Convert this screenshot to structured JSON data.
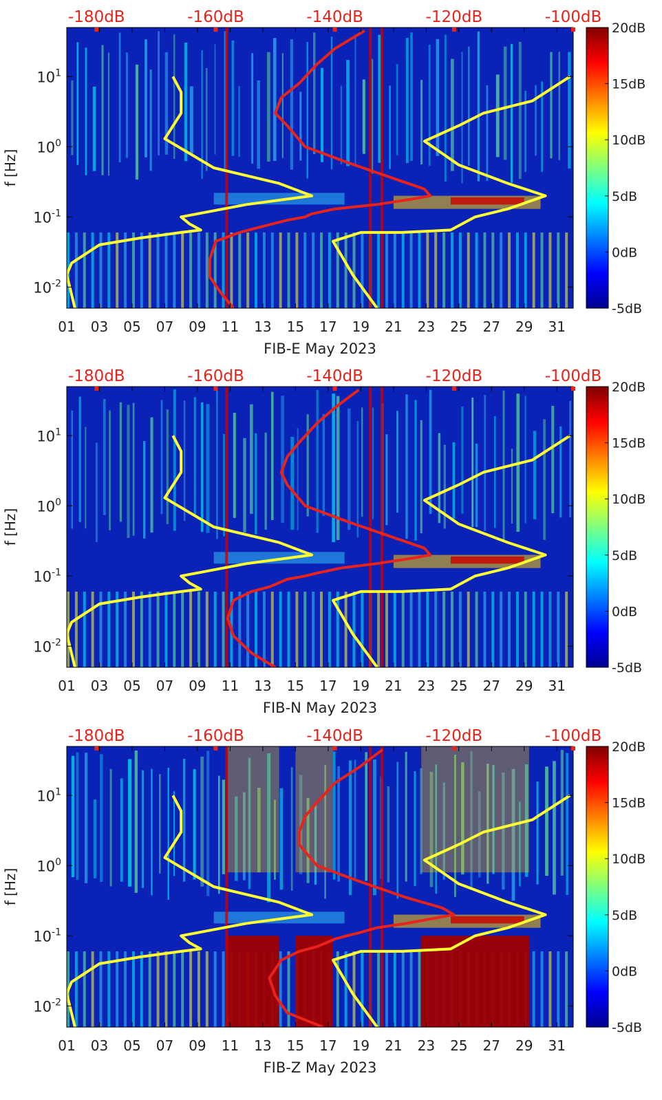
{
  "chart_data": [
    {
      "type": "heatmap",
      "xlabel": "FIB-E May 2023",
      "ylabel": "f [Hz]",
      "x_ticks": [
        "01",
        "03",
        "05",
        "07",
        "09",
        "11",
        "13",
        "15",
        "17",
        "19",
        "21",
        "23",
        "25",
        "27",
        "29",
        "31"
      ],
      "y_ticks": [
        "10^-2",
        "10^-1",
        "10^0",
        "10^1"
      ],
      "x_range": [
        1,
        32
      ],
      "y_range_hz": [
        0.005,
        50
      ],
      "y_scale": "log",
      "top_axis_labels": [
        "-180dB",
        "-160dB",
        "-140dB",
        "-120dB",
        "-100dB"
      ],
      "top_axis_range_db": [
        -185,
        -100
      ],
      "colorbar": {
        "ticks": [
          "20dB",
          "15dB",
          "10dB",
          "5dB",
          "0dB",
          "-5dB"
        ],
        "range_db": [
          -5,
          20
        ],
        "colormap": "jet"
      },
      "series": [
        {
          "color": "#ffff33",
          "axis": "day",
          "points": [
            [
              1.5,
              0.005
            ],
            [
              1.0,
              0.015
            ],
            [
              1.3,
              0.022
            ],
            [
              3.0,
              0.04
            ],
            [
              5.5,
              0.05
            ],
            [
              8.0,
              0.06
            ],
            [
              9.2,
              0.065
            ],
            [
              8.5,
              0.08
            ],
            [
              8.0,
              0.1
            ],
            [
              12.0,
              0.15
            ],
            [
              16.0,
              0.2
            ],
            [
              14.0,
              0.3
            ],
            [
              10.0,
              0.5
            ],
            [
              7.0,
              1.3
            ],
            [
              8.0,
              3.0
            ],
            [
              8.0,
              6.0
            ],
            [
              7.5,
              10.0
            ]
          ]
        },
        {
          "color": "#ffff33",
          "axis": "day",
          "points": [
            [
              20.0,
              0.005
            ],
            [
              18.5,
              0.015
            ],
            [
              17.3,
              0.045
            ],
            [
              19.0,
              0.06
            ],
            [
              21.5,
              0.06
            ],
            [
              24.5,
              0.065
            ],
            [
              26.0,
              0.1
            ],
            [
              28.0,
              0.13
            ],
            [
              30.3,
              0.2
            ],
            [
              28.0,
              0.3
            ],
            [
              25.0,
              0.55
            ],
            [
              22.9,
              1.2
            ],
            [
              25.0,
              2.0
            ],
            [
              26.5,
              3.0
            ],
            [
              29.5,
              4.5
            ],
            [
              31.8,
              10.0
            ]
          ]
        },
        {
          "color": "#e8231c",
          "axis": "db",
          "points": [
            [
              -157,
              0.005
            ],
            [
              -159,
              0.008
            ],
            [
              -161,
              0.014
            ],
            [
              -161,
              0.025
            ],
            [
              -160,
              0.045
            ],
            [
              -156,
              0.06
            ],
            [
              -153,
              0.07
            ],
            [
              -148,
              0.09
            ],
            [
              -145,
              0.1
            ],
            [
              -144,
              0.11
            ],
            [
              -140,
              0.13
            ],
            [
              -133,
              0.15
            ],
            [
              -127,
              0.18
            ],
            [
              -124,
              0.2
            ],
            [
              -125,
              0.25
            ],
            [
              -130,
              0.35
            ],
            [
              -138,
              0.6
            ],
            [
              -145,
              1.0
            ],
            [
              -148,
              2.0
            ],
            [
              -150,
              3.0
            ],
            [
              -149,
              5.0
            ],
            [
              -146,
              8.0
            ],
            [
              -143,
              15.0
            ],
            [
              -140,
              25.0
            ],
            [
              -135,
              45.0
            ]
          ]
        }
      ]
    },
    {
      "type": "heatmap",
      "xlabel": "FIB-N May 2023",
      "ylabel": "f [Hz]",
      "x_ticks": [
        "01",
        "03",
        "05",
        "07",
        "09",
        "11",
        "13",
        "15",
        "17",
        "19",
        "21",
        "23",
        "25",
        "27",
        "29",
        "31"
      ],
      "y_ticks": [
        "10^-2",
        "10^-1",
        "10^0",
        "10^1"
      ],
      "x_range": [
        1,
        32
      ],
      "y_range_hz": [
        0.005,
        50
      ],
      "y_scale": "log",
      "top_axis_labels": [
        "-180dB",
        "-160dB",
        "-140dB",
        "-120dB",
        "-100dB"
      ],
      "top_axis_range_db": [
        -185,
        -100
      ],
      "colorbar": {
        "ticks": [
          "20dB",
          "15dB",
          "10dB",
          "5dB",
          "0dB",
          "-5dB"
        ],
        "range_db": [
          -5,
          20
        ],
        "colormap": "jet"
      },
      "series": [
        {
          "color": "#ffff33",
          "axis": "day",
          "points": [
            [
              1.5,
              0.005
            ],
            [
              1.0,
              0.015
            ],
            [
              1.3,
              0.022
            ],
            [
              3.0,
              0.04
            ],
            [
              5.5,
              0.05
            ],
            [
              8.0,
              0.06
            ],
            [
              9.2,
              0.065
            ],
            [
              8.5,
              0.08
            ],
            [
              8.0,
              0.1
            ],
            [
              12.0,
              0.15
            ],
            [
              16.0,
              0.2
            ],
            [
              14.0,
              0.3
            ],
            [
              10.0,
              0.5
            ],
            [
              7.0,
              1.3
            ],
            [
              8.0,
              3.0
            ],
            [
              8.0,
              6.0
            ],
            [
              7.5,
              10.0
            ]
          ]
        },
        {
          "color": "#ffff33",
          "axis": "day",
          "points": [
            [
              20.0,
              0.005
            ],
            [
              18.5,
              0.015
            ],
            [
              17.3,
              0.045
            ],
            [
              19.0,
              0.06
            ],
            [
              21.5,
              0.06
            ],
            [
              24.5,
              0.065
            ],
            [
              26.0,
              0.1
            ],
            [
              28.0,
              0.13
            ],
            [
              30.3,
              0.2
            ],
            [
              28.0,
              0.3
            ],
            [
              25.0,
              0.55
            ],
            [
              22.9,
              1.2
            ],
            [
              25.0,
              2.0
            ],
            [
              26.5,
              3.0
            ],
            [
              29.5,
              4.5
            ],
            [
              31.8,
              10.0
            ]
          ]
        },
        {
          "color": "#e8231c",
          "axis": "db",
          "points": [
            [
              -150,
              0.005
            ],
            [
              -154,
              0.008
            ],
            [
              -157,
              0.014
            ],
            [
              -158,
              0.025
            ],
            [
              -157,
              0.045
            ],
            [
              -154,
              0.06
            ],
            [
              -151,
              0.07
            ],
            [
              -148,
              0.09
            ],
            [
              -145,
              0.1
            ],
            [
              -143,
              0.11
            ],
            [
              -139,
              0.13
            ],
            [
              -133,
              0.15
            ],
            [
              -127,
              0.18
            ],
            [
              -124,
              0.2
            ],
            [
              -125,
              0.25
            ],
            [
              -130,
              0.35
            ],
            [
              -138,
              0.6
            ],
            [
              -145,
              1.0
            ],
            [
              -148,
              2.0
            ],
            [
              -149,
              3.0
            ],
            [
              -148,
              5.0
            ],
            [
              -146,
              8.0
            ],
            [
              -143,
              15.0
            ],
            [
              -140,
              25.0
            ],
            [
              -136,
              45.0
            ]
          ]
        }
      ]
    },
    {
      "type": "heatmap",
      "xlabel": "FIB-Z May 2023",
      "ylabel": "f [Hz]",
      "x_ticks": [
        "01",
        "03",
        "05",
        "07",
        "09",
        "11",
        "13",
        "15",
        "17",
        "19",
        "21",
        "23",
        "25",
        "27",
        "29",
        "31"
      ],
      "y_ticks": [
        "10^-2",
        "10^-1",
        "10^0",
        "10^1"
      ],
      "x_range": [
        1,
        32
      ],
      "y_range_hz": [
        0.005,
        50
      ],
      "y_scale": "log",
      "top_axis_labels": [
        "-180dB",
        "-160dB",
        "-140dB",
        "-120dB",
        "-100dB"
      ],
      "top_axis_range_db": [
        -185,
        -100
      ],
      "colorbar": {
        "ticks": [
          "20dB",
          "15dB",
          "10dB",
          "5dB",
          "0dB",
          "-5dB"
        ],
        "range_db": [
          -5,
          20
        ],
        "colormap": "jet"
      },
      "series": [
        {
          "color": "#ffff33",
          "axis": "day",
          "points": [
            [
              1.5,
              0.005
            ],
            [
              1.0,
              0.015
            ],
            [
              1.3,
              0.022
            ],
            [
              3.0,
              0.04
            ],
            [
              5.5,
              0.05
            ],
            [
              8.0,
              0.06
            ],
            [
              9.2,
              0.065
            ],
            [
              8.5,
              0.08
            ],
            [
              8.0,
              0.1
            ],
            [
              12.0,
              0.15
            ],
            [
              16.0,
              0.2
            ],
            [
              14.0,
              0.3
            ],
            [
              10.0,
              0.5
            ],
            [
              7.0,
              1.3
            ],
            [
              8.0,
              3.0
            ],
            [
              8.0,
              6.0
            ],
            [
              7.5,
              10.0
            ]
          ]
        },
        {
          "color": "#ffff33",
          "axis": "day",
          "points": [
            [
              20.0,
              0.005
            ],
            [
              18.5,
              0.015
            ],
            [
              17.3,
              0.045
            ],
            [
              19.0,
              0.06
            ],
            [
              21.5,
              0.06
            ],
            [
              24.5,
              0.065
            ],
            [
              26.0,
              0.1
            ],
            [
              28.0,
              0.13
            ],
            [
              30.3,
              0.2
            ],
            [
              28.0,
              0.3
            ],
            [
              25.0,
              0.55
            ],
            [
              22.9,
              1.2
            ],
            [
              25.0,
              2.0
            ],
            [
              26.5,
              3.0
            ],
            [
              29.5,
              4.5
            ],
            [
              31.8,
              10.0
            ]
          ]
        },
        {
          "color": "#e8231c",
          "axis": "db",
          "points": [
            [
              -142,
              0.005
            ],
            [
              -148,
              0.008
            ],
            [
              -150,
              0.014
            ],
            [
              -151,
              0.025
            ],
            [
              -149,
              0.045
            ],
            [
              -146,
              0.06
            ],
            [
              -143,
              0.07
            ],
            [
              -140,
              0.09
            ],
            [
              -138,
              0.1
            ],
            [
              -136,
              0.11
            ],
            [
              -133,
              0.13
            ],
            [
              -128,
              0.15
            ],
            [
              -123,
              0.18
            ],
            [
              -120,
              0.2
            ],
            [
              -122,
              0.25
            ],
            [
              -128,
              0.35
            ],
            [
              -136,
              0.6
            ],
            [
              -143,
              1.0
            ],
            [
              -146,
              2.0
            ],
            [
              -146,
              3.0
            ],
            [
              -145,
              5.0
            ],
            [
              -143,
              8.0
            ],
            [
              -140,
              15.0
            ],
            [
              -136,
              25.0
            ],
            [
              -132,
              45.0
            ]
          ]
        }
      ]
    }
  ],
  "colors": {
    "top_axis_label": "#e8231c",
    "yellow_line": "#ffff33",
    "red_line": "#e8231c",
    "background_blue": "#0a22b5"
  }
}
